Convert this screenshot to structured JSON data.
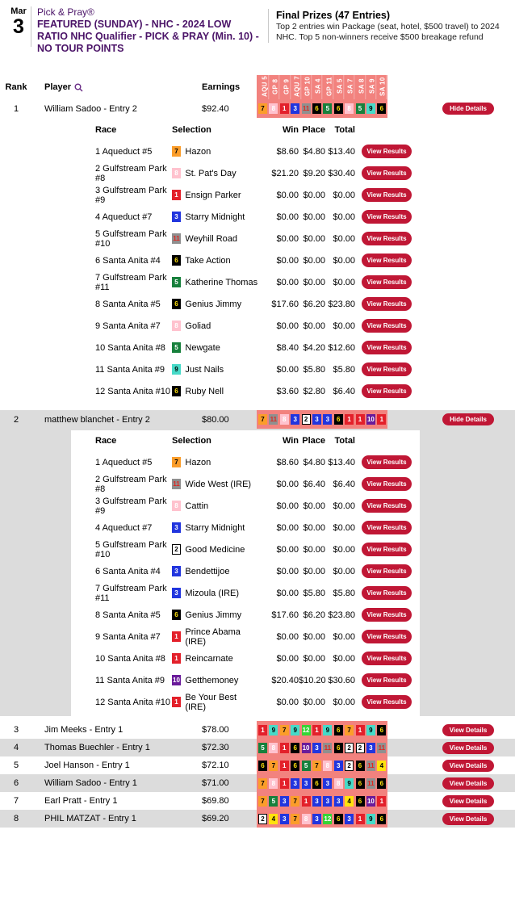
{
  "header": {
    "date_month": "Mar",
    "date_day": "3",
    "brand": "Pick & Pray®",
    "title": "FEATURED (SUNDAY) - NHC - 2024 LOW RATIO NHC Qualifier - PICK & PRAY (Min. 10) - NO TOUR POINTS",
    "prizes_title": "Final Prizes (47 Entries)",
    "prizes_body": "Top 2 entries win Package (seat, hotel, $500 travel) to 2024 NHC. Top 5 non-winners receive $500 breakage refund",
    "search_icon": "magnifier"
  },
  "table": {
    "columns": {
      "rank": "Rank",
      "player": "Player",
      "earnings": "Earnings"
    },
    "race_columns": [
      "AQU 5",
      "GP 8",
      "GP 9",
      "AQU 7",
      "GP 10",
      "SA 4",
      "GP 11",
      "SA 5",
      "SA 7",
      "SA 8",
      "SA 9",
      "SA 10"
    ],
    "detail_columns": {
      "race": "Race",
      "selection": "Selection",
      "win": "Win",
      "place": "Place",
      "total": "Total"
    },
    "buttons": {
      "hide": "Hide Details",
      "view": "View Details",
      "view_results": "View Results"
    }
  },
  "colors": {
    "accent_button": "#c01735",
    "title_purple": "#4b1468",
    "picks_strip_pink": "#f2827e",
    "shaded_row_gray": "#dcdcdc"
  },
  "chip_colors": {
    "1": {
      "bg": "#e3202a",
      "fg": "#ffffff"
    },
    "2": {
      "bg": "#ffffff",
      "fg": "#000000",
      "border": "#000000"
    },
    "3": {
      "bg": "#2135de",
      "fg": "#ffffff"
    },
    "4": {
      "bg": "#ffe20d",
      "fg": "#000000"
    },
    "5": {
      "bg": "#17803c",
      "fg": "#ffffff"
    },
    "6": {
      "bg": "#000000",
      "fg": "#ffe20d"
    },
    "7": {
      "bg": "#fb9d2a",
      "fg": "#000000"
    },
    "8": {
      "bg": "#ffc2ce",
      "fg": "#ffffff"
    },
    "9": {
      "bg": "#47dac8",
      "fg": "#000000"
    },
    "10": {
      "bg": "#6a1b9a",
      "fg": "#ffffff"
    },
    "11": {
      "bg": "#8f8f8f",
      "fg": "#e0261f"
    },
    "12": {
      "bg": "#35d435",
      "fg": "#ffffff"
    }
  },
  "entries": [
    {
      "rank": "1",
      "player": "William Sadoo - Entry 2",
      "earnings": "$92.40",
      "expanded": true,
      "picks": [
        7,
        8,
        1,
        3,
        11,
        6,
        5,
        6,
        8,
        5,
        9,
        6
      ],
      "details": [
        {
          "race": "1 Aqueduct #5",
          "num": 7,
          "horse": "Hazon",
          "win": "$8.60",
          "place": "$4.80",
          "total": "$13.40"
        },
        {
          "race": "2 Gulfstream Park #8",
          "num": 8,
          "horse": "St. Pat's Day",
          "win": "$21.20",
          "place": "$9.20",
          "total": "$30.40"
        },
        {
          "race": "3 Gulfstream Park #9",
          "num": 1,
          "horse": "Ensign Parker",
          "win": "$0.00",
          "place": "$0.00",
          "total": "$0.00"
        },
        {
          "race": "4 Aqueduct #7",
          "num": 3,
          "horse": "Starry Midnight",
          "win": "$0.00",
          "place": "$0.00",
          "total": "$0.00"
        },
        {
          "race": "5 Gulfstream Park #10",
          "num": 11,
          "horse": "Weyhill Road",
          "win": "$0.00",
          "place": "$0.00",
          "total": "$0.00"
        },
        {
          "race": "6 Santa Anita #4",
          "num": 6,
          "horse": "Take Action",
          "win": "$0.00",
          "place": "$0.00",
          "total": "$0.00"
        },
        {
          "race": "7 Gulfstream Park #11",
          "num": 5,
          "horse": "Katherine Thomas",
          "win": "$0.00",
          "place": "$0.00",
          "total": "$0.00"
        },
        {
          "race": "8 Santa Anita #5",
          "num": 6,
          "horse": "Genius Jimmy",
          "win": "$17.60",
          "place": "$6.20",
          "total": "$23.80"
        },
        {
          "race": "9 Santa Anita #7",
          "num": 8,
          "horse": "Goliad",
          "win": "$0.00",
          "place": "$0.00",
          "total": "$0.00"
        },
        {
          "race": "10 Santa Anita #8",
          "num": 5,
          "horse": "Newgate",
          "win": "$8.40",
          "place": "$4.20",
          "total": "$12.60"
        },
        {
          "race": "11 Santa Anita #9",
          "num": 9,
          "horse": "Just Nails",
          "win": "$0.00",
          "place": "$5.80",
          "total": "$5.80"
        },
        {
          "race": "12 Santa Anita #10",
          "num": 6,
          "horse": "Ruby Nell",
          "win": "$3.60",
          "place": "$2.80",
          "total": "$6.40"
        }
      ]
    },
    {
      "rank": "2",
      "player": "matthew blanchet - Entry 2",
      "earnings": "$80.00",
      "expanded": true,
      "picks": [
        7,
        11,
        8,
        3,
        2,
        3,
        3,
        6,
        1,
        1,
        10,
        1
      ],
      "details": [
        {
          "race": "1 Aqueduct #5",
          "num": 7,
          "horse": "Hazon",
          "win": "$8.60",
          "place": "$4.80",
          "total": "$13.40"
        },
        {
          "race": "2 Gulfstream Park #8",
          "num": 11,
          "horse": "Wide West (IRE)",
          "win": "$0.00",
          "place": "$6.40",
          "total": "$6.40"
        },
        {
          "race": "3 Gulfstream Park #9",
          "num": 8,
          "horse": "Cattin",
          "win": "$0.00",
          "place": "$0.00",
          "total": "$0.00"
        },
        {
          "race": "4 Aqueduct #7",
          "num": 3,
          "horse": "Starry Midnight",
          "win": "$0.00",
          "place": "$0.00",
          "total": "$0.00"
        },
        {
          "race": "5 Gulfstream Park #10",
          "num": 2,
          "horse": "Good Medicine",
          "win": "$0.00",
          "place": "$0.00",
          "total": "$0.00"
        },
        {
          "race": "6 Santa Anita #4",
          "num": 3,
          "horse": "Bendettijoe",
          "win": "$0.00",
          "place": "$0.00",
          "total": "$0.00"
        },
        {
          "race": "7 Gulfstream Park #11",
          "num": 3,
          "horse": "Mizoula (IRE)",
          "win": "$0.00",
          "place": "$5.80",
          "total": "$5.80"
        },
        {
          "race": "8 Santa Anita #5",
          "num": 6,
          "horse": "Genius Jimmy",
          "win": "$17.60",
          "place": "$6.20",
          "total": "$23.80"
        },
        {
          "race": "9 Santa Anita #7",
          "num": 1,
          "horse": "Prince Abama (IRE)",
          "win": "$0.00",
          "place": "$0.00",
          "total": "$0.00"
        },
        {
          "race": "10 Santa Anita #8",
          "num": 1,
          "horse": "Reincarnate",
          "win": "$0.00",
          "place": "$0.00",
          "total": "$0.00"
        },
        {
          "race": "11 Santa Anita #9",
          "num": 10,
          "horse": "Getthemoney",
          "win": "$20.40",
          "place": "$10.20",
          "total": "$30.60"
        },
        {
          "race": "12 Santa Anita #10",
          "num": 1,
          "horse": "Be Your Best (IRE)",
          "win": "$0.00",
          "place": "$0.00",
          "total": "$0.00"
        }
      ]
    },
    {
      "rank": "3",
      "player": "Jim Meeks - Entry 1",
      "earnings": "$78.00",
      "expanded": false,
      "picks": [
        1,
        9,
        7,
        9,
        12,
        1,
        9,
        6,
        7,
        1,
        9,
        6
      ]
    },
    {
      "rank": "4",
      "player": "Thomas Buechler - Entry 1",
      "earnings": "$72.30",
      "expanded": false,
      "picks": [
        5,
        8,
        1,
        6,
        10,
        3,
        11,
        6,
        2,
        2,
        3,
        11
      ]
    },
    {
      "rank": "5",
      "player": "Joel Hanson - Entry 1",
      "earnings": "$72.10",
      "expanded": false,
      "picks": [
        6,
        7,
        1,
        6,
        5,
        7,
        8,
        3,
        2,
        6,
        11,
        4
      ]
    },
    {
      "rank": "6",
      "player": "William Sadoo - Entry 1",
      "earnings": "$71.00",
      "expanded": false,
      "picks": [
        7,
        8,
        1,
        3,
        3,
        6,
        3,
        8,
        9,
        6,
        11,
        6
      ]
    },
    {
      "rank": "7",
      "player": "Earl Pratt - Entry 1",
      "earnings": "$69.80",
      "expanded": false,
      "picks": [
        7,
        5,
        3,
        7,
        1,
        3,
        3,
        3,
        4,
        6,
        10,
        1
      ]
    },
    {
      "rank": "8",
      "player": "PHIL MATZAT - Entry 1",
      "earnings": "$69.20",
      "expanded": false,
      "picks": [
        2,
        4,
        3,
        7,
        8,
        3,
        12,
        6,
        3,
        1,
        9,
        6
      ]
    }
  ]
}
